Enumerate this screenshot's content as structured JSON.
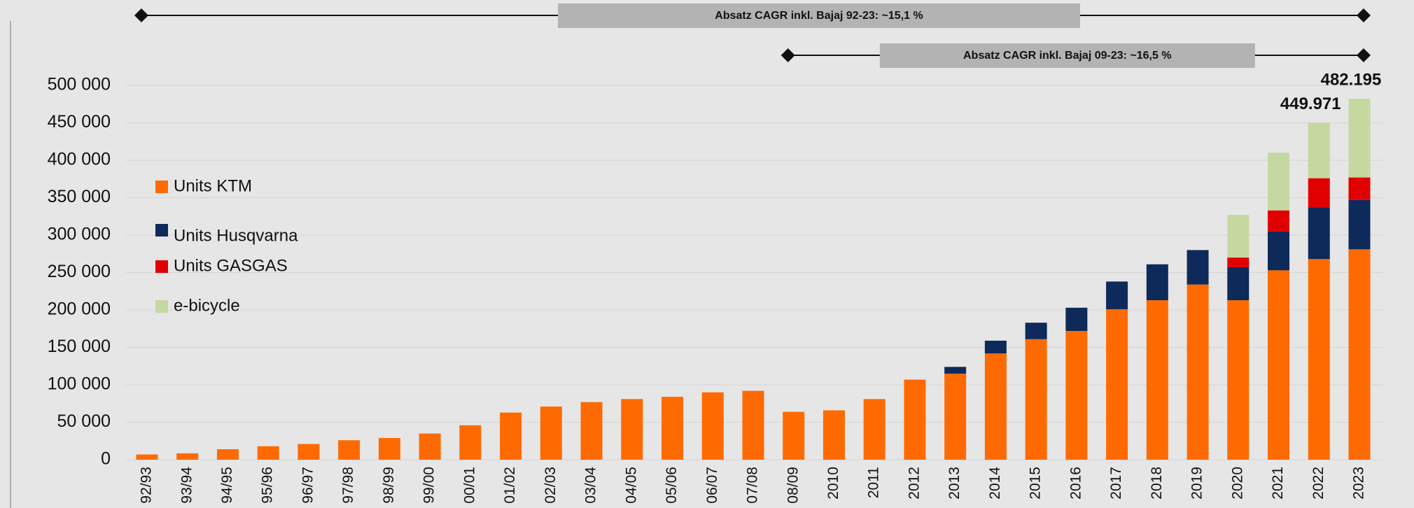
{
  "chart_data": {
    "type": "stacked_bar",
    "categories": [
      "92/93",
      "93/94",
      "94/95",
      "95/96",
      "96/97",
      "97/98",
      "98/99",
      "99/00",
      "00/01",
      "01/02",
      "02/03",
      "03/04",
      "04/05",
      "05/06",
      "06/07",
      "07/08",
      "08/09",
      "2010",
      "2011",
      "2012",
      "2013",
      "2014",
      "2015",
      "2016",
      "2017",
      "2018",
      "2019",
      "2020",
      "2021",
      "2022",
      "2023"
    ],
    "series": [
      {
        "name": "Units KTM",
        "color": "#ff6a00",
        "values": [
          7000,
          8500,
          14000,
          18000,
          21000,
          26000,
          29000,
          35000,
          46000,
          63000,
          71000,
          77000,
          81000,
          84000,
          90000,
          92000,
          64000,
          66000,
          81000,
          107000,
          115000,
          142000,
          161000,
          172000,
          201000,
          213000,
          234000,
          213000,
          253000,
          268000,
          281000
        ]
      },
      {
        "name": "Units Husqvarna",
        "color": "#0d2a5a",
        "values": [
          null,
          null,
          null,
          null,
          null,
          null,
          null,
          null,
          null,
          null,
          null,
          null,
          null,
          null,
          null,
          null,
          null,
          null,
          null,
          null,
          9000,
          17000,
          22000,
          31000,
          37000,
          48000,
          46000,
          44000,
          52000,
          69000,
          66000
        ]
      },
      {
        "name": "Units GASGAS",
        "color": "#e00000",
        "values": [
          null,
          null,
          null,
          null,
          null,
          null,
          null,
          null,
          null,
          null,
          null,
          null,
          null,
          null,
          null,
          null,
          null,
          null,
          null,
          null,
          null,
          null,
          null,
          null,
          null,
          null,
          null,
          13000,
          28000,
          39000,
          30000
        ]
      },
      {
        "name": "e-bicycle",
        "color": "#c5d8a0",
        "values": [
          null,
          null,
          null,
          null,
          null,
          null,
          null,
          null,
          null,
          null,
          null,
          null,
          null,
          null,
          null,
          null,
          null,
          null,
          null,
          null,
          null,
          null,
          null,
          null,
          null,
          null,
          null,
          57000,
          77000,
          74000,
          105000
        ]
      }
    ],
    "ylim": [
      0,
      500000
    ],
    "yticks": [
      0,
      {
        "value": 50000,
        "label": "50 000"
      },
      {
        "value": 100000,
        "label": "100 000"
      },
      {
        "value": 150000,
        "label": "150 000"
      },
      {
        "value": 200000,
        "label": "200 000"
      },
      {
        "value": 250000,
        "label": "250 000"
      },
      {
        "value": 300000,
        "label": "300 000"
      },
      {
        "value": 350000,
        "label": "350 000"
      },
      {
        "value": 400000,
        "label": "400 000"
      },
      {
        "value": 450000,
        "label": "450 000"
      },
      {
        "value": 500000,
        "label": "500 000"
      }
    ],
    "grid": true,
    "totals": [
      {
        "category": "2022",
        "value": 449971,
        "label": "449.971"
      },
      {
        "category": "2023",
        "value": 482195,
        "label": "482.195"
      }
    ],
    "annotations": [
      {
        "text": "Absatz CAGR inkl. Bajaj 92-23: ~15,1 %",
        "from": "92/93",
        "to": "2023"
      },
      {
        "text": "Absatz CAGR inkl. Bajaj 09-23: ~16,5 %",
        "from": "08/09",
        "to": "2023"
      }
    ]
  }
}
